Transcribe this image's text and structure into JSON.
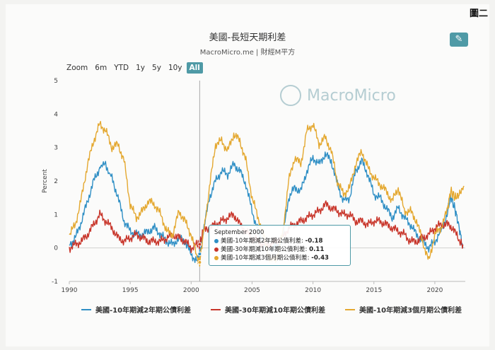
{
  "corner_label": "圖二",
  "edit_icon": "pencil-icon",
  "watermark_text": "MacroMicro",
  "range_selector": {
    "zoom_label": "Zoom",
    "buttons": [
      "6m",
      "YTD",
      "1y",
      "5y",
      "10y",
      "All"
    ],
    "selected": "All"
  },
  "tooltip": {
    "date": "September 2000",
    "rows": [
      {
        "label": "美國-10年期減2年期公債利差:",
        "value": "-0.18",
        "color": "#2f8fc5"
      },
      {
        "label": "美國-30年期減10年期公債利差:",
        "value": "0.11",
        "color": "#c8352a"
      },
      {
        "label": "美國-10年期減3個月期公債利差:",
        "value": "-0.43",
        "color": "#e4a830"
      }
    ]
  },
  "chart_data": {
    "type": "line",
    "title": "美國-長短天期利差",
    "subtitle": "MacroMicro.me | 財經M平方",
    "ylabel": "Percent",
    "xlabel": "",
    "ylim": [
      -1,
      5
    ],
    "xlim": [
      1990,
      2022.5
    ],
    "yticks": [
      -1,
      0,
      1,
      2,
      3,
      4,
      5
    ],
    "xticks": [
      1990,
      1995,
      2000,
      2005,
      2010,
      2015,
      2020
    ],
    "grid": false,
    "legend_position": "bottom",
    "crosshair_x": 2000.7,
    "series": [
      {
        "name": "美國-10年期減2年期公債利差",
        "color": "#2f8fc5",
        "points": [
          [
            1990,
            0.1
          ],
          [
            1990.5,
            0.3
          ],
          [
            1991,
            0.8
          ],
          [
            1991.5,
            1.4
          ],
          [
            1992,
            2.0
          ],
          [
            1992.5,
            2.4
          ],
          [
            1992.9,
            2.55
          ],
          [
            1993.5,
            2.1
          ],
          [
            1994,
            1.5
          ],
          [
            1994.5,
            0.8
          ],
          [
            1995,
            0.5
          ],
          [
            1995.5,
            0.4
          ],
          [
            1996,
            0.4
          ],
          [
            1996.5,
            0.5
          ],
          [
            1997,
            0.6
          ],
          [
            1997.5,
            0.4
          ],
          [
            1998,
            0.2
          ],
          [
            1998.5,
            0.1
          ],
          [
            1999,
            0.3
          ],
          [
            1999.5,
            0.2
          ],
          [
            2000,
            -0.2
          ],
          [
            2000.5,
            -0.4
          ],
          [
            2000.7,
            -0.18
          ],
          [
            2001,
            0.5
          ],
          [
            2001.5,
            1.5
          ],
          [
            2002,
            2.0
          ],
          [
            2002.5,
            2.3
          ],
          [
            2003,
            2.2
          ],
          [
            2003.5,
            2.5
          ],
          [
            2004,
            2.3
          ],
          [
            2004.5,
            1.9
          ],
          [
            2005,
            1.1
          ],
          [
            2005.5,
            0.5
          ],
          [
            2006,
            0.1
          ],
          [
            2006.5,
            0.0
          ],
          [
            2007,
            0.05
          ],
          [
            2007.5,
            0.3
          ],
          [
            2008,
            1.5
          ],
          [
            2008.5,
            1.8
          ],
          [
            2009,
            1.7
          ],
          [
            2009.5,
            2.3
          ],
          [
            2010,
            2.7
          ],
          [
            2010.5,
            2.5
          ],
          [
            2011,
            2.8
          ],
          [
            2011.5,
            2.6
          ],
          [
            2012,
            1.9
          ],
          [
            2012.5,
            1.4
          ],
          [
            2013,
            1.5
          ],
          [
            2013.5,
            2.3
          ],
          [
            2014,
            2.6
          ],
          [
            2014.5,
            2.2
          ],
          [
            2015,
            1.6
          ],
          [
            2015.5,
            1.5
          ],
          [
            2016,
            1.2
          ],
          [
            2016.5,
            0.9
          ],
          [
            2017,
            1.2
          ],
          [
            2017.5,
            0.9
          ],
          [
            2018,
            0.7
          ],
          [
            2018.5,
            0.4
          ],
          [
            2019,
            0.2
          ],
          [
            2019.5,
            0.0
          ],
          [
            2020,
            0.2
          ],
          [
            2020.5,
            0.5
          ],
          [
            2021,
            1.0
          ],
          [
            2021.3,
            1.55
          ],
          [
            2021.7,
            1.1
          ],
          [
            2022,
            0.6
          ],
          [
            2022.3,
            0.0
          ]
        ]
      },
      {
        "name": "美國-30年期減10年期公債利差",
        "color": "#c8352a",
        "points": [
          [
            1990,
            0.0
          ],
          [
            1990.5,
            0.1
          ],
          [
            1991,
            0.2
          ],
          [
            1991.5,
            0.4
          ],
          [
            1992,
            0.7
          ],
          [
            1992.5,
            1.0
          ],
          [
            1993,
            0.8
          ],
          [
            1993.5,
            0.6
          ],
          [
            1994,
            0.3
          ],
          [
            1994.5,
            0.2
          ],
          [
            1995,
            0.3
          ],
          [
            1995.5,
            0.4
          ],
          [
            1996,
            0.3
          ],
          [
            1996.5,
            0.2
          ],
          [
            1997,
            0.2
          ],
          [
            1997.5,
            0.2
          ],
          [
            1998,
            0.3
          ],
          [
            1998.5,
            0.4
          ],
          [
            1999,
            0.3
          ],
          [
            1999.5,
            0.2
          ],
          [
            2000,
            0.0
          ],
          [
            2000.5,
            0.1
          ],
          [
            2000.7,
            0.11
          ],
          [
            2001,
            0.5
          ],
          [
            2001.5,
            0.6
          ],
          [
            2002,
            0.7
          ],
          [
            2002.5,
            0.8
          ],
          [
            2003,
            0.9
          ],
          [
            2003.5,
            1.0
          ],
          [
            2004,
            0.7
          ],
          [
            2004.5,
            0.5
          ],
          [
            2005,
            0.3
          ],
          [
            2005.5,
            0.2
          ],
          [
            2006,
            0.1
          ],
          [
            2006.5,
            0.1
          ],
          [
            2007,
            0.2
          ],
          [
            2007.5,
            0.3
          ],
          [
            2008,
            0.6
          ],
          [
            2008.5,
            0.7
          ],
          [
            2009,
            0.8
          ],
          [
            2009.5,
            0.9
          ],
          [
            2010,
            1.0
          ],
          [
            2010.5,
            1.1
          ],
          [
            2011,
            1.3
          ],
          [
            2011.5,
            1.2
          ],
          [
            2012,
            1.1
          ],
          [
            2012.5,
            1.0
          ],
          [
            2013,
            1.0
          ],
          [
            2013.5,
            0.8
          ],
          [
            2014,
            0.8
          ],
          [
            2014.5,
            0.7
          ],
          [
            2015,
            0.8
          ],
          [
            2015.5,
            0.8
          ],
          [
            2016,
            0.7
          ],
          [
            2016.5,
            0.6
          ],
          [
            2017,
            0.5
          ],
          [
            2017.5,
            0.4
          ],
          [
            2018,
            0.2
          ],
          [
            2018.5,
            0.2
          ],
          [
            2019,
            0.3
          ],
          [
            2019.5,
            0.4
          ],
          [
            2020,
            0.6
          ],
          [
            2020.5,
            0.7
          ],
          [
            2021,
            0.7
          ],
          [
            2021.5,
            0.6
          ],
          [
            2022,
            0.2
          ],
          [
            2022.3,
            0.1
          ]
        ]
      },
      {
        "name": "美國-10年期減3個月期公債利差",
        "color": "#e4a830",
        "points": [
          [
            1990,
            0.4
          ],
          [
            1990.5,
            0.7
          ],
          [
            1991,
            1.5
          ],
          [
            1991.5,
            2.5
          ],
          [
            1992,
            3.2
          ],
          [
            1992.5,
            3.7
          ],
          [
            1993,
            3.5
          ],
          [
            1993.5,
            3.0
          ],
          [
            1994,
            3.1
          ],
          [
            1994.5,
            2.6
          ],
          [
            1995,
            1.3
          ],
          [
            1995.5,
            0.9
          ],
          [
            1996,
            1.1
          ],
          [
            1996.5,
            1.4
          ],
          [
            1997,
            1.3
          ],
          [
            1997.5,
            1.0
          ],
          [
            1998,
            0.5
          ],
          [
            1998.5,
            0.4
          ],
          [
            1999,
            1.1
          ],
          [
            1999.5,
            0.8
          ],
          [
            2000,
            0.4
          ],
          [
            2000.5,
            -0.3
          ],
          [
            2000.7,
            -0.43
          ],
          [
            2001,
            0.4
          ],
          [
            2001.5,
            1.8
          ],
          [
            2002,
            3.1
          ],
          [
            2002.5,
            3.2
          ],
          [
            2003,
            2.9
          ],
          [
            2003.5,
            3.4
          ],
          [
            2004,
            3.2
          ],
          [
            2004.5,
            2.6
          ],
          [
            2005,
            1.5
          ],
          [
            2005.5,
            0.9
          ],
          [
            2006,
            0.3
          ],
          [
            2006.5,
            -0.4
          ],
          [
            2007,
            -0.3
          ],
          [
            2007.5,
            0.4
          ],
          [
            2008,
            2.0
          ],
          [
            2008.5,
            2.7
          ],
          [
            2009,
            2.5
          ],
          [
            2009.5,
            3.5
          ],
          [
            2010,
            3.7
          ],
          [
            2010.5,
            3.1
          ],
          [
            2011,
            3.3
          ],
          [
            2011.5,
            2.9
          ],
          [
            2012,
            2.0
          ],
          [
            2012.5,
            1.6
          ],
          [
            2013,
            1.8
          ],
          [
            2013.5,
            2.5
          ],
          [
            2014,
            2.9
          ],
          [
            2014.5,
            2.4
          ],
          [
            2015,
            2.1
          ],
          [
            2015.5,
            1.9
          ],
          [
            2016,
            1.7
          ],
          [
            2016.5,
            1.4
          ],
          [
            2017,
            1.8
          ],
          [
            2017.5,
            1.1
          ],
          [
            2018,
            1.1
          ],
          [
            2018.5,
            0.8
          ],
          [
            2019,
            0.2
          ],
          [
            2019.5,
            -0.4
          ],
          [
            2020,
            0.4
          ],
          [
            2020.5,
            0.6
          ],
          [
            2021,
            1.1
          ],
          [
            2021.3,
            1.7
          ],
          [
            2021.7,
            1.5
          ],
          [
            2022,
            1.6
          ],
          [
            2022.4,
            1.85
          ]
        ]
      }
    ]
  }
}
